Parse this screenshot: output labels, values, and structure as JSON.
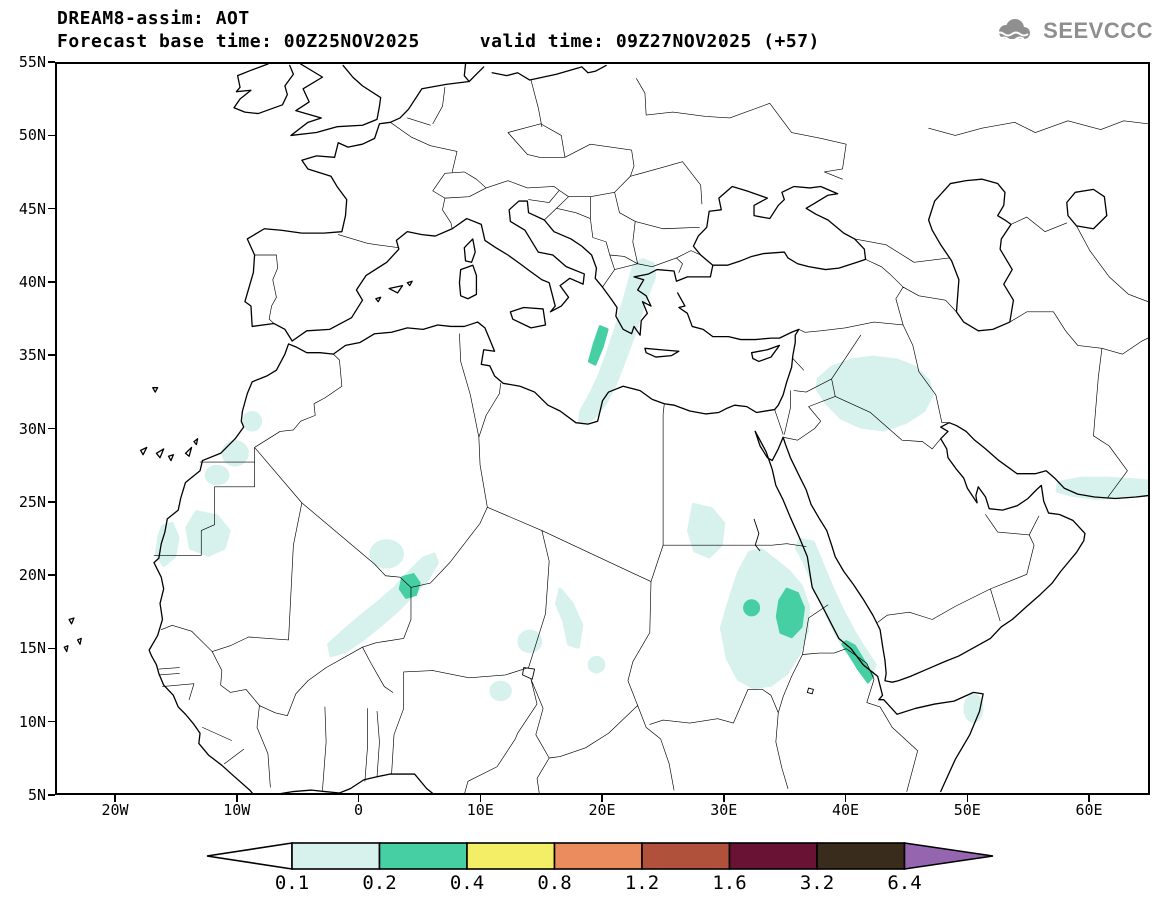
{
  "header": {
    "title": "DREAM8-assim: AOT",
    "base_time": "Forecast base time: 00Z25NOV2025",
    "valid_time": "valid time: 09Z27NOV2025 (+57)"
  },
  "logo": {
    "text": "SEEVCCC",
    "color": "#8f8f8f"
  },
  "map": {
    "lat_labels": [
      "55N",
      "50N",
      "45N",
      "40N",
      "35N",
      "30N",
      "25N",
      "20N",
      "15N",
      "10N",
      "5N"
    ],
    "lon_labels": [
      "20W",
      "10W",
      "0",
      "10E",
      "20E",
      "30E",
      "40E",
      "50E",
      "60E"
    ]
  },
  "colorbar": {
    "labels": [
      "0.1",
      "0.2",
      "0.4",
      "0.8",
      "1.2",
      "1.6",
      "3.2",
      "6.4"
    ],
    "left_arrow_color": "#ffffff",
    "cell_colors": [
      "#d7f2ed",
      "#46cfa2",
      "#f2ee65",
      "#ea8c5e",
      "#b0513c",
      "#6a1233",
      "#392c1c"
    ],
    "right_arrow_color": "#9565b0"
  },
  "aot_levels": {
    "level1": "#d7f2ed",
    "level2": "#46cfa2"
  }
}
